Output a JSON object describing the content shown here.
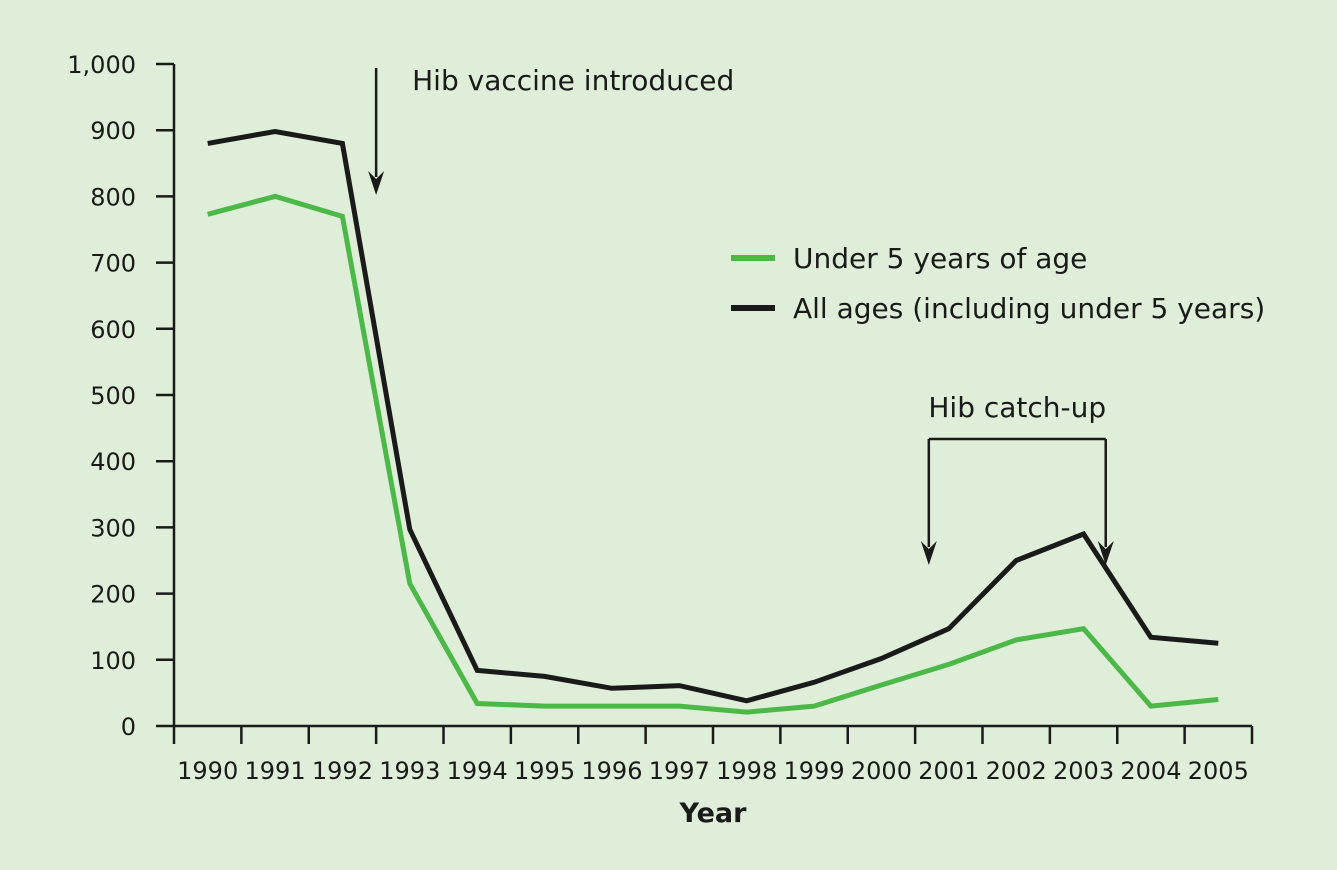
{
  "chart_data": {
    "type": "line",
    "title": "",
    "xlabel": "Year",
    "ylabel": "",
    "categories": [
      "1990",
      "1991",
      "1992",
      "1993",
      "1994",
      "1995",
      "1996",
      "1997",
      "1998",
      "1999",
      "2000",
      "2001",
      "2002",
      "2003",
      "2004",
      "2005"
    ],
    "y_ticks": [
      0,
      100,
      200,
      300,
      400,
      500,
      600,
      700,
      800,
      900,
      1000
    ],
    "y_tick_labels": [
      "0",
      "100",
      "200",
      "300",
      "400",
      "500",
      "600",
      "700",
      "800",
      "900",
      "1,000"
    ],
    "ylim": [
      0,
      1000
    ],
    "grid": false,
    "legend_position": "right",
    "series": [
      {
        "name": "Under 5 years of age",
        "color": "#4cb848",
        "values": [
          773,
          800,
          770,
          215,
          34,
          30,
          30,
          30,
          21,
          30,
          62,
          93,
          130,
          147,
          30,
          40
        ]
      },
      {
        "name": "All ages (including under 5 years)",
        "color": "#1a1a1a",
        "values": [
          880,
          898,
          880,
          297,
          84,
          75,
          57,
          61,
          38,
          66,
          102,
          147,
          250,
          290,
          134,
          125
        ]
      }
    ],
    "annotations": [
      {
        "label": "Hib vaccine introduced",
        "at_year_index": 2.5
      },
      {
        "label": "Hib catch-up",
        "from_year_index": 11,
        "to_year_index": 13.7
      }
    ]
  }
}
